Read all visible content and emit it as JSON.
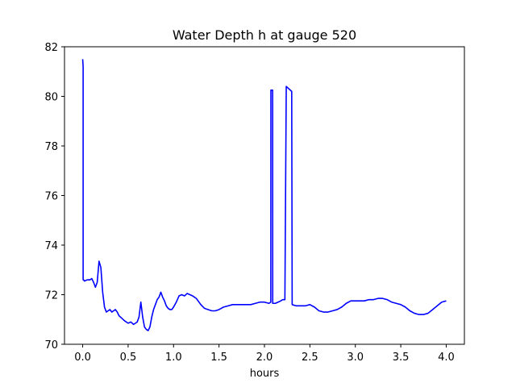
{
  "chart_data": {
    "type": "line",
    "title": "Water Depth h at gauge 520",
    "xlabel": "hours",
    "ylabel": "",
    "xlim": [
      -0.2,
      4.2
    ],
    "ylim": [
      70,
      82
    ],
    "xticks": [
      0.0,
      0.5,
      1.0,
      1.5,
      2.0,
      2.5,
      3.0,
      3.5,
      4.0
    ],
    "xtick_labels": [
      "0.0",
      "0.5",
      "1.0",
      "1.5",
      "2.0",
      "2.5",
      "3.0",
      "3.5",
      "4.0"
    ],
    "yticks": [
      70,
      72,
      74,
      76,
      78,
      80,
      82
    ],
    "ytick_labels": [
      "70",
      "72",
      "74",
      "76",
      "78",
      "80",
      "82"
    ],
    "grid": false,
    "legend": "none",
    "series": [
      {
        "color": "#0000ff",
        "x": [
          0.0,
          0.005,
          0.005,
          0.01,
          0.02,
          0.05,
          0.08,
          0.1,
          0.12,
          0.14,
          0.16,
          0.18,
          0.2,
          0.22,
          0.24,
          0.26,
          0.28,
          0.3,
          0.32,
          0.34,
          0.36,
          0.38,
          0.4,
          0.43,
          0.46,
          0.5,
          0.53,
          0.56,
          0.58,
          0.6,
          0.62,
          0.64,
          0.66,
          0.68,
          0.7,
          0.72,
          0.74,
          0.76,
          0.78,
          0.8,
          0.82,
          0.84,
          0.86,
          0.88,
          0.9,
          0.92,
          0.94,
          0.96,
          0.98,
          1.0,
          1.03,
          1.06,
          1.09,
          1.12,
          1.15,
          1.18,
          1.21,
          1.25,
          1.3,
          1.34,
          1.38,
          1.42,
          1.46,
          1.5,
          1.55,
          1.6,
          1.65,
          1.7,
          1.75,
          1.8,
          1.85,
          1.9,
          1.95,
          2.0,
          2.05,
          2.07,
          2.071,
          2.09,
          2.091,
          2.12,
          2.15,
          2.18,
          2.2,
          2.22,
          2.225,
          2.24,
          2.3,
          2.305,
          2.35,
          2.4,
          2.45,
          2.5,
          2.55,
          2.6,
          2.65,
          2.7,
          2.75,
          2.8,
          2.85,
          2.9,
          2.95,
          3.0,
          3.05,
          3.1,
          3.15,
          3.2,
          3.25,
          3.3,
          3.35,
          3.4,
          3.45,
          3.5,
          3.55,
          3.6,
          3.65,
          3.7,
          3.75,
          3.8,
          3.85,
          3.9,
          3.95,
          4.0
        ],
        "y": [
          81.5,
          81.2,
          72.6,
          72.6,
          72.55,
          72.6,
          72.6,
          72.65,
          72.5,
          72.3,
          72.5,
          73.35,
          73.1,
          72.1,
          71.5,
          71.3,
          71.35,
          71.4,
          71.3,
          71.35,
          71.4,
          71.3,
          71.15,
          71.05,
          70.95,
          70.85,
          70.9,
          70.8,
          70.85,
          70.9,
          71.1,
          71.7,
          71.1,
          70.7,
          70.6,
          70.55,
          70.7,
          71.1,
          71.4,
          71.6,
          71.8,
          71.9,
          72.1,
          71.9,
          71.75,
          71.55,
          71.45,
          71.4,
          71.4,
          71.5,
          71.7,
          71.95,
          72.0,
          71.95,
          72.05,
          72.0,
          71.95,
          71.85,
          71.6,
          71.45,
          71.4,
          71.35,
          71.35,
          71.4,
          71.5,
          71.55,
          71.6,
          71.6,
          71.6,
          71.6,
          71.6,
          71.65,
          71.7,
          71.7,
          71.65,
          71.7,
          80.25,
          80.25,
          71.65,
          71.65,
          71.7,
          71.75,
          71.8,
          71.8,
          71.8,
          80.4,
          80.2,
          71.6,
          71.55,
          71.55,
          71.55,
          71.6,
          71.5,
          71.35,
          71.3,
          71.3,
          71.35,
          71.4,
          71.5,
          71.65,
          71.75,
          71.75,
          71.75,
          71.75,
          71.8,
          71.8,
          71.85,
          71.85,
          71.8,
          71.7,
          71.65,
          71.6,
          71.5,
          71.35,
          71.25,
          71.2,
          71.2,
          71.25,
          71.4,
          71.55,
          71.7,
          71.75
        ]
      }
    ]
  }
}
